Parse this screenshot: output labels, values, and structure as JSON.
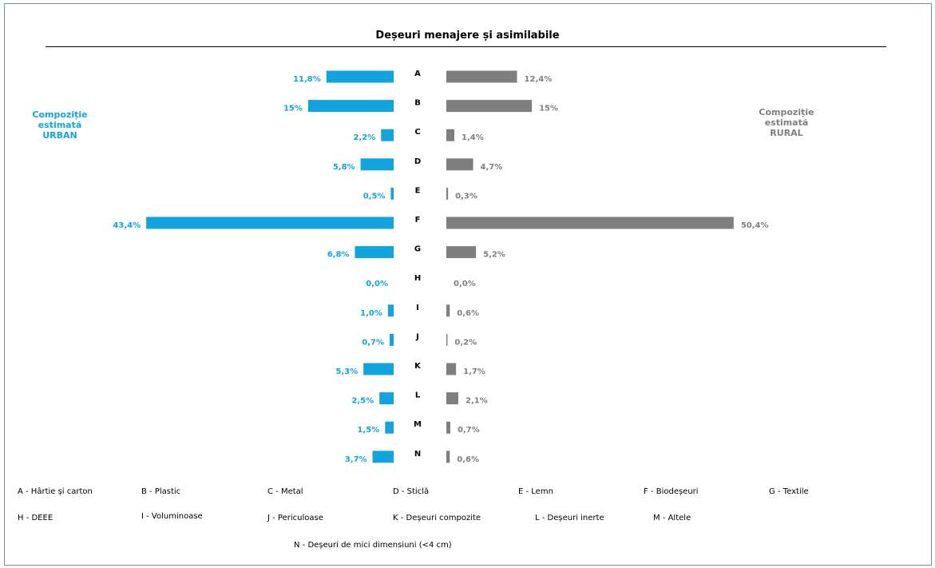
{
  "chart_data": {
    "type": "bar",
    "title": "Deșeuri menajere și asimilabile",
    "categories": [
      "A",
      "B",
      "C",
      "D",
      "E",
      "F",
      "G",
      "H",
      "I",
      "J",
      "K",
      "L",
      "M",
      "N"
    ],
    "series": [
      {
        "name": "Compoziție estimată URBAN",
        "values": [
          11.8,
          15,
          2.2,
          5.8,
          0.5,
          43.4,
          6.8,
          0.0,
          1.0,
          0.7,
          5.3,
          2.5,
          1.5,
          3.7
        ],
        "labels": [
          "11,8%",
          "15%",
          "2,2%",
          "5,8%",
          "0,5%",
          "43,4%",
          "6,8%",
          "0,0%",
          "1,0%",
          "0,7%",
          "5,3%",
          "2,5%",
          "1,5%",
          "3,7%"
        ],
        "color": "#12a4df"
      },
      {
        "name": "Compoziție estimată RURAL",
        "values": [
          12.4,
          15,
          1.4,
          4.7,
          0.3,
          50.4,
          5.2,
          0.0,
          0.6,
          0.2,
          1.7,
          2.1,
          0.7,
          0.6
        ],
        "labels": [
          "12,4%",
          "15%",
          "1,4%",
          "4,7%",
          "0,3%",
          "50,4%",
          "5,2%",
          "0,0%",
          "0,6%",
          "0,2%",
          "1,7%",
          "2,1%",
          "0,7%",
          "0,6%"
        ],
        "color": "#7f7f7f"
      }
    ]
  },
  "side_labels": {
    "urban": [
      "Compoziție",
      "estimată",
      "URBAN"
    ],
    "rural": [
      "Compoziție",
      "estimată",
      "RURAL"
    ]
  },
  "legend": [
    "A - Hârtie și carton",
    "B - Plastic",
    "C - Metal",
    "D - Sticlă",
    "E - Lemn",
    "F - Biodeșeuri",
    "G - Textile",
    "H - DEEE",
    "I - Voluminoase",
    "J - Periculoase",
    "K - Deșeuri compozite",
    "L - Deșeuri inerte",
    "M - Altele",
    "N - Deșeuri de mici dimensiuni (<4 cm)"
  ]
}
